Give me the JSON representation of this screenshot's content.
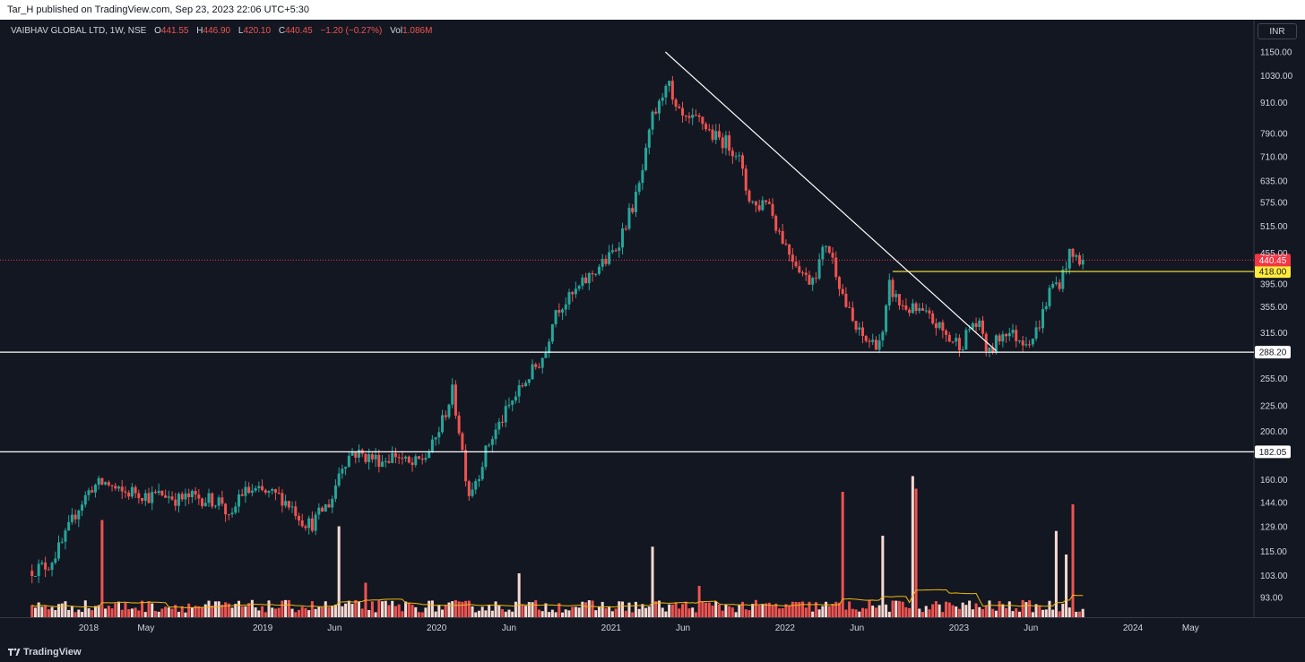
{
  "header": {
    "publish_line": "Tar_H published on TradingView.com, Sep 23, 2023 22:06 UTC+5:30"
  },
  "legend": {
    "symbol": "VAIBHAV GLOBAL LTD, 1W, NSE",
    "o_label": "O",
    "o_value": "441.55",
    "h_label": "H",
    "h_value": "446.90",
    "l_label": "L",
    "l_value": "420.10",
    "c_label": "C",
    "c_value": "440.45",
    "change": "−1.20 (−0.27%)",
    "vol_label": "Vol",
    "vol_value": "1.086M"
  },
  "currency_button": "INR",
  "footer": {
    "brand": "TradingView"
  },
  "colors": {
    "background": "#131722",
    "up": "#26a69a",
    "down": "#ef5350",
    "vol_up": "#f7d9d2",
    "vol_down": "#ef5350",
    "trend_line": "#ffffff",
    "level_418": "#ffeb3b",
    "volume_ma": "#f0b90b",
    "last_price": "#f23645"
  },
  "chart_data": {
    "type": "candlestick",
    "symbol": "VAIBHAV GLOBAL LTD",
    "interval": "1W",
    "exchange": "NSE",
    "y_scale": "log",
    "y_ticks": [
      1150,
      1030,
      910,
      790,
      710,
      635,
      575,
      515,
      455,
      395,
      355,
      315,
      255,
      225,
      200,
      160,
      144,
      129,
      115,
      103,
      93
    ],
    "y_tick_labels": [
      "1150.00",
      "1030.00",
      "910.00",
      "790.00",
      "710.00",
      "635.00",
      "575.00",
      "515.00",
      "455.00",
      "395.00",
      "355.00",
      "315.00",
      "255.00",
      "225.00",
      "200.00",
      "160.00",
      "144.00",
      "129.00",
      "115.00",
      "103.00",
      "93.00"
    ],
    "x_labels": [
      "2018",
      "May",
      "2019",
      "Jun",
      "2020",
      "Jun",
      "2021",
      "Jun",
      "2022",
      "Jun",
      "2023",
      "Jun",
      "2024",
      "May"
    ],
    "x_label_dates": [
      "2018-01-01",
      "2018-05-01",
      "2019-01-01",
      "2019-06-01",
      "2020-01-01",
      "2020-06-01",
      "2021-01-01",
      "2021-06-01",
      "2022-01-01",
      "2022-06-01",
      "2023-01-01",
      "2023-06-01",
      "2024-01-01",
      "2024-05-01"
    ],
    "price_path": [
      [
        "2017-09-01",
        105
      ],
      [
        "2017-10-15",
        108
      ],
      [
        "2017-11-15",
        120
      ],
      [
        "2017-12-15",
        140
      ],
      [
        "2018-01-15",
        155
      ],
      [
        "2018-02-15",
        158
      ],
      [
        "2018-03-15",
        150
      ],
      [
        "2018-04-15",
        152
      ],
      [
        "2018-05-15",
        148
      ],
      [
        "2018-06-15",
        150
      ],
      [
        "2018-07-15",
        146
      ],
      [
        "2018-08-15",
        148
      ],
      [
        "2018-09-15",
        146
      ],
      [
        "2018-10-15",
        145
      ],
      [
        "2018-11-01",
        130
      ],
      [
        "2018-11-20",
        150
      ],
      [
        "2018-12-15",
        152
      ],
      [
        "2019-01-15",
        150
      ],
      [
        "2019-02-15",
        148
      ],
      [
        "2019-03-15",
        140
      ],
      [
        "2019-04-01",
        133
      ],
      [
        "2019-04-20",
        130
      ],
      [
        "2019-05-15",
        140
      ],
      [
        "2019-06-01",
        145
      ],
      [
        "2019-06-20",
        170
      ],
      [
        "2019-07-15",
        182
      ],
      [
        "2019-08-15",
        178
      ],
      [
        "2019-09-15",
        175
      ],
      [
        "2019-10-15",
        180
      ],
      [
        "2019-11-15",
        170
      ],
      [
        "2019-12-15",
        178
      ],
      [
        "2020-01-01",
        188
      ],
      [
        "2020-01-20",
        210
      ],
      [
        "2020-02-10",
        240
      ],
      [
        "2020-02-25",
        200
      ],
      [
        "2020-03-15",
        150
      ],
      [
        "2020-04-05",
        165
      ],
      [
        "2020-04-25",
        188
      ],
      [
        "2020-05-20",
        208
      ],
      [
        "2020-06-15",
        230
      ],
      [
        "2020-07-15",
        255
      ],
      [
        "2020-08-10",
        275
      ],
      [
        "2020-08-25",
        290
      ],
      [
        "2020-09-10",
        350
      ],
      [
        "2020-10-15",
        370
      ],
      [
        "2020-11-15",
        400
      ],
      [
        "2020-12-15",
        430
      ],
      [
        "2020-12-31",
        440
      ],
      [
        "2021-01-20",
        470
      ],
      [
        "2021-02-10",
        530
      ],
      [
        "2021-03-05",
        600
      ],
      [
        "2021-03-20",
        700
      ],
      [
        "2021-04-05",
        850
      ],
      [
        "2021-04-20",
        900
      ],
      [
        "2021-05-05",
        1030
      ],
      [
        "2021-05-20",
        880
      ],
      [
        "2021-06-15",
        830
      ],
      [
        "2021-07-15",
        840
      ],
      [
        "2021-08-10",
        780
      ],
      [
        "2021-09-05",
        760
      ],
      [
        "2021-10-01",
        720
      ],
      [
        "2021-10-20",
        600
      ],
      [
        "2021-11-10",
        560
      ],
      [
        "2021-12-01",
        590
      ],
      [
        "2021-12-20",
        520
      ],
      [
        "2022-01-15",
        460
      ],
      [
        "2022-02-05",
        430
      ],
      [
        "2022-02-25",
        400
      ],
      [
        "2022-03-15",
        420
      ],
      [
        "2022-04-05",
        480
      ],
      [
        "2022-04-25",
        420
      ],
      [
        "2022-05-15",
        360
      ],
      [
        "2022-06-05",
        320
      ],
      [
        "2022-06-25",
        305
      ],
      [
        "2022-07-15",
        300
      ],
      [
        "2022-08-01",
        310
      ],
      [
        "2022-08-15",
        390
      ],
      [
        "2022-09-05",
        360
      ],
      [
        "2022-10-01",
        350
      ],
      [
        "2022-10-20",
        345
      ],
      [
        "2022-11-10",
        335
      ],
      [
        "2022-12-01",
        320
      ],
      [
        "2022-12-20",
        305
      ],
      [
        "2023-01-15",
        300
      ],
      [
        "2023-02-05",
        330
      ],
      [
        "2023-02-25",
        320
      ],
      [
        "2023-03-10",
        282
      ],
      [
        "2023-03-25",
        300
      ],
      [
        "2023-04-15",
        320
      ],
      [
        "2023-05-05",
        310
      ],
      [
        "2023-05-25",
        305
      ],
      [
        "2023-06-15",
        310
      ],
      [
        "2023-07-01",
        340
      ],
      [
        "2023-07-20",
        390
      ],
      [
        "2023-08-10",
        400
      ],
      [
        "2023-08-25",
        450
      ],
      [
        "2023-09-10",
        445
      ],
      [
        "2023-09-22",
        440.45
      ]
    ],
    "volume_spikes": [
      [
        "2018-01-29",
        0.62
      ],
      [
        "2019-06-10",
        0.58
      ],
      [
        "2019-08-05",
        0.22
      ],
      [
        "2020-06-22",
        0.28
      ],
      [
        "2021-03-29",
        0.45
      ],
      [
        "2021-07-05",
        0.2
      ],
      [
        "2022-05-02",
        0.8
      ],
      [
        "2022-07-25",
        0.52
      ],
      [
        "2022-09-26",
        0.9
      ],
      [
        "2022-10-03",
        0.82
      ],
      [
        "2023-07-24",
        0.55
      ],
      [
        "2023-08-14",
        0.4
      ],
      [
        "2023-08-28",
        0.72
      ]
    ],
    "last_price": 440.45,
    "last_price_label": "440.45",
    "horizontal_levels": [
      {
        "value": 418.0,
        "label": "418.00",
        "style": "yellow-from-breakout"
      },
      {
        "value": 288.2,
        "label": "288.20",
        "style": "white-full"
      },
      {
        "value": 182.05,
        "label": "182.05",
        "style": "white-full"
      }
    ],
    "trend_line": {
      "from": [
        "2021-04-25",
        1150
      ],
      "to": [
        "2023-03-20",
        290
      ]
    },
    "grid": false,
    "legend_position": "top-left"
  }
}
